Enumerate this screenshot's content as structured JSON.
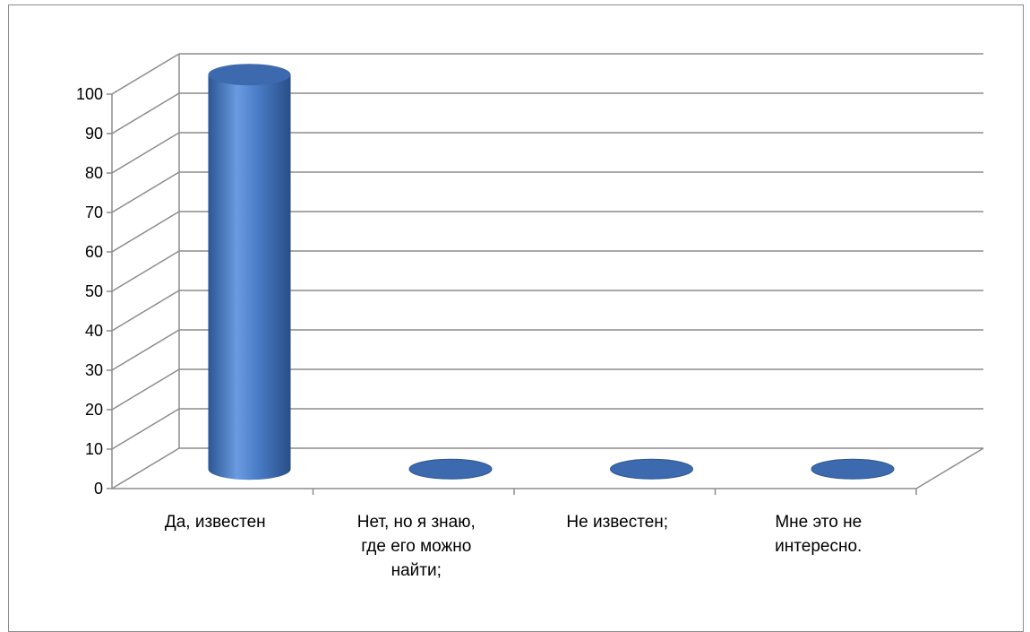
{
  "chart_data": {
    "type": "bar",
    "bar_shape": "cylinder",
    "three_d": true,
    "categories": [
      [
        "Да, известен"
      ],
      [
        "Нет, но я знаю,",
        "где его можно",
        "найти;"
      ],
      [
        "Не известен;"
      ],
      [
        "Мне это не",
        "интересно."
      ]
    ],
    "values": [
      100,
      0,
      0,
      0
    ],
    "ylim": [
      0,
      100
    ],
    "yticks": [
      0,
      10,
      20,
      30,
      40,
      50,
      60,
      70,
      80,
      90,
      100
    ],
    "ytick_labels": [
      "0",
      "10",
      "20",
      "30",
      "40",
      "50",
      "60",
      "70",
      "80",
      "90",
      "100"
    ],
    "grid": true,
    "legend": "none",
    "colors": {
      "bar_light": "#6a9be0",
      "bar_mid": "#4a7cc8",
      "bar_dark": "#2c5693",
      "bar_top": "#3d6aae",
      "grid": "#8c8c8c"
    }
  }
}
